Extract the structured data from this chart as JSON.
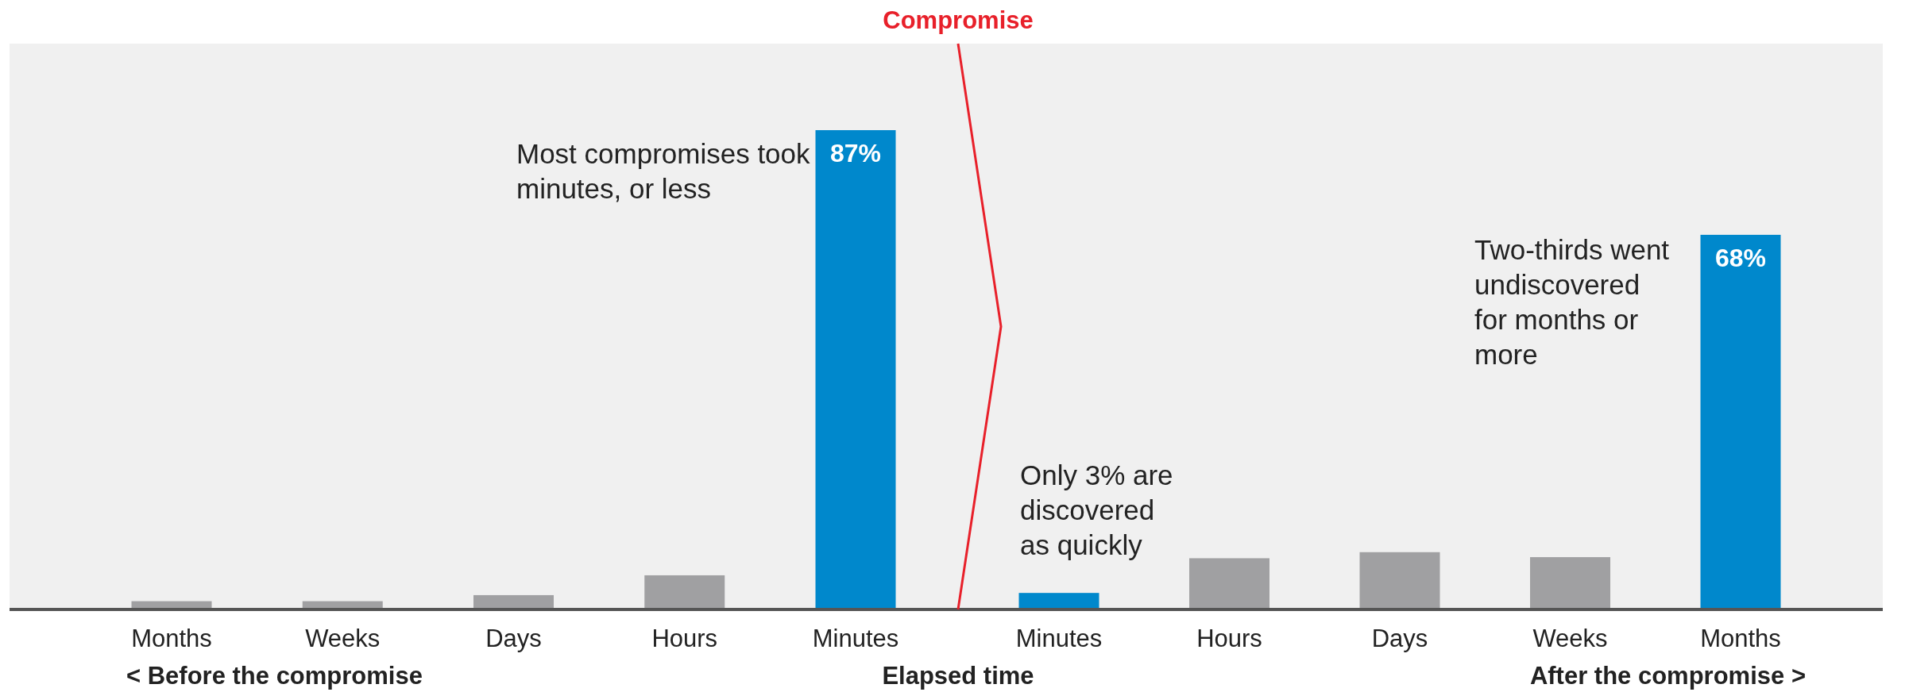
{
  "chart_data": {
    "type": "bar",
    "xlabel": "Elapsed time",
    "categories": [
      "Months",
      "Weeks",
      "Days",
      "Hours",
      "Minutes",
      "Minutes",
      "Hours",
      "Days",
      "Weeks",
      "Months"
    ],
    "values": [
      1.5,
      1.5,
      2.6,
      6.2,
      87,
      3,
      9.3,
      10.4,
      9.5,
      68
    ],
    "colors": [
      "#a0a0a2",
      "#a0a0a2",
      "#a0a0a2",
      "#a0a0a2",
      "#0088cc",
      "#0088cc",
      "#a0a0a2",
      "#a0a0a2",
      "#a0a0a2",
      "#0088cc"
    ],
    "value_labels": [
      null,
      null,
      null,
      null,
      "87%",
      null,
      null,
      null,
      null,
      "68%"
    ],
    "annotations": [
      "Most compromises took minutes, or less",
      "Only 3% are discovered as quickly",
      "Two-thirds went undiscovered for months or more",
      "< Before the compromise",
      "After the compromise >",
      "Compromise"
    ]
  }
}
